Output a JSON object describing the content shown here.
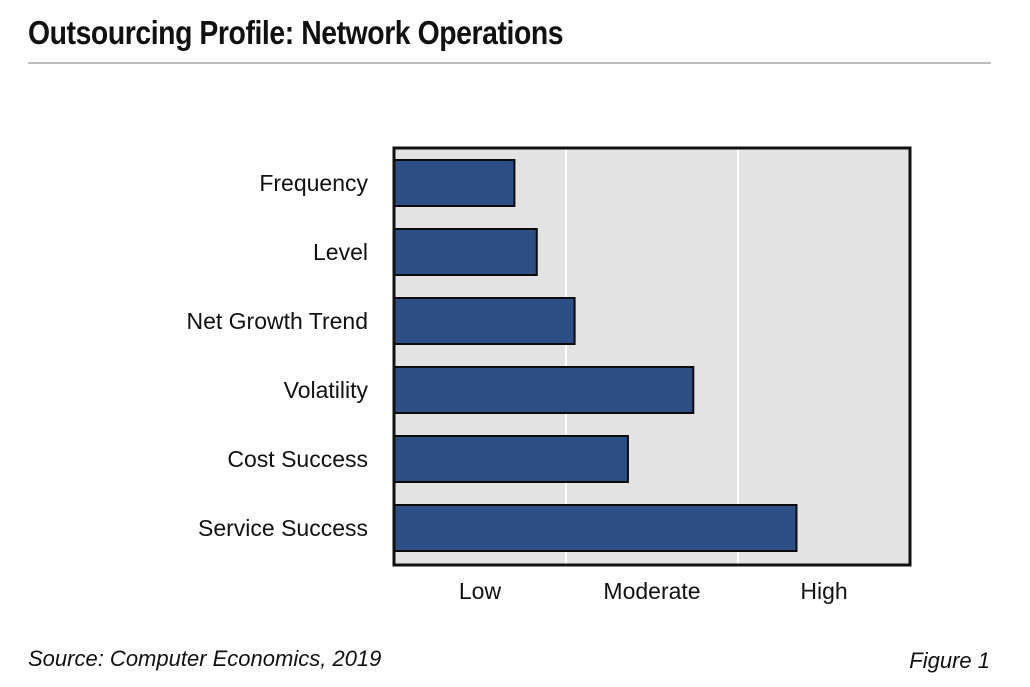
{
  "title": "Outsourcing Profile: Network Operations",
  "source": "Source: Computer Economics, 2019",
  "figure_label": "Figure 1",
  "colors": {
    "bar": "#2d4f86",
    "plot_background": "#e3e3e3",
    "frame": "#111111",
    "gridline": "#ffffff"
  },
  "chart_data": {
    "type": "bar",
    "orientation": "horizontal",
    "title": "Outsourcing Profile: Network Operations",
    "categories": [
      "Frequency",
      "Level",
      "Net Growth Trend",
      "Volatility",
      "Cost Success",
      "Service Success"
    ],
    "values": [
      0.7,
      0.83,
      1.05,
      1.74,
      1.36,
      2.34
    ],
    "xlim": [
      0,
      3
    ],
    "xticks": [
      {
        "label": "Low",
        "value": 0.5
      },
      {
        "label": "Moderate",
        "value": 1.5
      },
      {
        "label": "High",
        "value": 2.5
      }
    ],
    "grid_boundaries": [
      1,
      2
    ],
    "xlabel": "",
    "ylabel": "",
    "legend": "none"
  }
}
